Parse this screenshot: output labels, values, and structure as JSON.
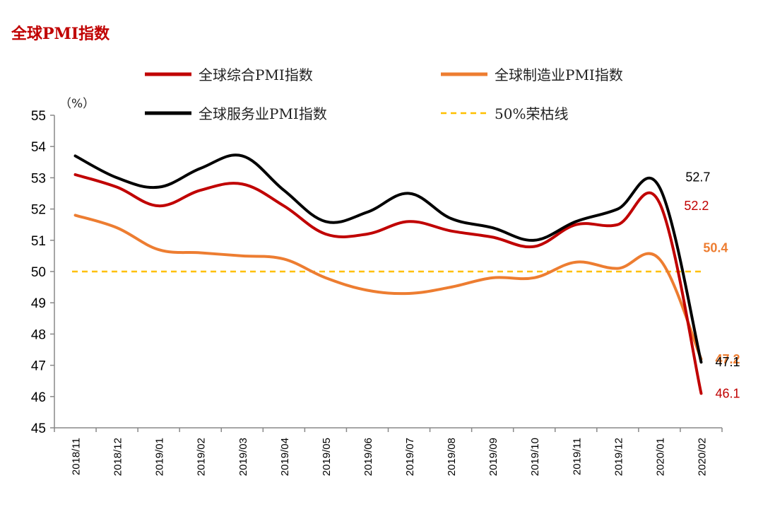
{
  "title": "全球PMI指数",
  "chart_data": {
    "type": "line",
    "ylabel": "（%）",
    "ylim": [
      45,
      55
    ],
    "yticks": [
      45,
      46,
      47,
      48,
      49,
      50,
      51,
      52,
      53,
      54,
      55
    ],
    "categories": [
      "2018/11",
      "2018/12",
      "2019/01",
      "2019/02",
      "2019/03",
      "2019/04",
      "2019/05",
      "2019/06",
      "2019/07",
      "2019/08",
      "2019/09",
      "2019/10",
      "2019/11",
      "2019/12",
      "2020/01",
      "2020/02"
    ],
    "legend_position": "top",
    "series": [
      {
        "name": "全球综合PMI指数",
        "color": "#c00000",
        "values": [
          53.1,
          52.7,
          52.1,
          52.6,
          52.8,
          52.1,
          51.2,
          51.2,
          51.6,
          51.3,
          51.1,
          50.8,
          51.5,
          51.5,
          52.2,
          46.1
        ],
        "labels": [
          "",
          "",
          "",
          "",
          "",
          "",
          "",
          "",
          "",
          "",
          "",
          "",
          "",
          "",
          "52.2",
          "46.1"
        ],
        "label_bold": false
      },
      {
        "name": "全球制造业PMI指数",
        "color": "#ed7d31",
        "values": [
          51.8,
          51.4,
          50.7,
          50.6,
          50.5,
          50.4,
          49.8,
          49.4,
          49.3,
          49.5,
          49.8,
          49.8,
          50.3,
          50.1,
          50.4,
          47.2
        ],
        "labels": [
          "",
          "",
          "",
          "",
          "",
          "",
          "",
          "",
          "",
          "",
          "",
          "",
          "",
          "",
          "50.4",
          "47.2"
        ],
        "label_bold": true
      },
      {
        "name": "全球服务业PMI指数",
        "color": "#000000",
        "values": [
          53.7,
          53.0,
          52.7,
          53.3,
          53.7,
          52.6,
          51.6,
          51.9,
          52.5,
          51.7,
          51.4,
          51.0,
          51.6,
          52.0,
          52.7,
          47.1
        ],
        "labels": [
          "",
          "",
          "",
          "",
          "",
          "",
          "",
          "",
          "",
          "",
          "",
          "",
          "",
          "",
          "52.7",
          "47.1"
        ],
        "label_bold": false
      }
    ],
    "reference_line": {
      "name": "50%荣枯线",
      "value": 50,
      "color": "#ffc000"
    }
  }
}
